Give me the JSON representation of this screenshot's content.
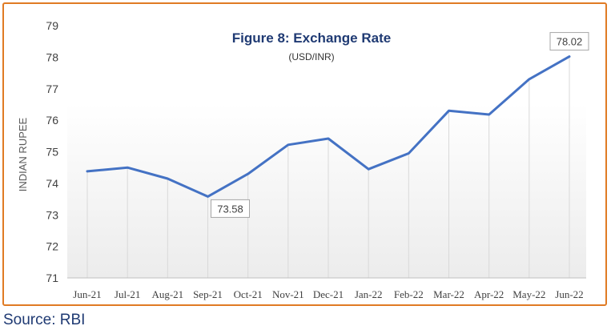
{
  "source_note": "Source: RBI",
  "chart_data": {
    "type": "line",
    "title": "Figure 8: Exchange Rate",
    "subtitle": "(USD/INR)",
    "ylabel": "INDIAN RUPEE",
    "xlabel": "",
    "categories": [
      "Jun-21",
      "Jul-21",
      "Aug-21",
      "Sep-21",
      "Oct-21",
      "Nov-21",
      "Dec-21",
      "Jan-22",
      "Feb-22",
      "Mar-22",
      "Apr-22",
      "May-22",
      "Jun-22"
    ],
    "series": [
      {
        "values": [
          74.38,
          74.5,
          74.15,
          73.58,
          74.3,
          75.22,
          75.42,
          74.45,
          74.95,
          76.3,
          76.18,
          77.3,
          78.02
        ]
      }
    ],
    "ylim": [
      71,
      79
    ],
    "yticks": [
      "71",
      "72",
      "73",
      "74",
      "75",
      "76",
      "77",
      "78",
      "79"
    ],
    "annotations": [
      {
        "category": "Sep-21",
        "text": "73.58"
      },
      {
        "category": "Jun-22",
        "text": "78.02"
      }
    ],
    "colors": {
      "line": "#4472c4",
      "title": "#1f3a73",
      "frame": "#e07b24"
    }
  }
}
